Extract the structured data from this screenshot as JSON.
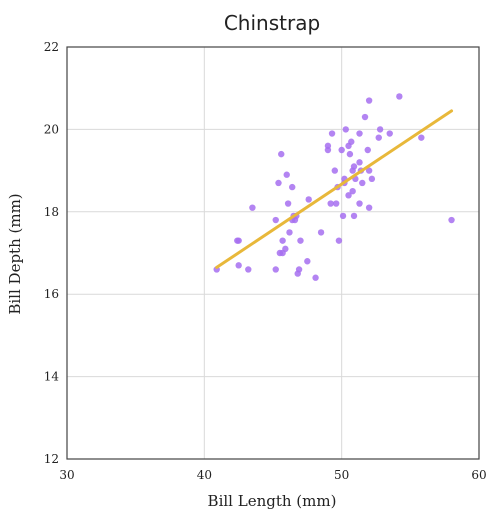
{
  "chart_data": {
    "type": "scatter",
    "title": "Chinstrap",
    "xlabel": "Bill Length (mm)",
    "ylabel": "Bill Depth (mm)",
    "xlim": [
      30,
      60
    ],
    "ylim": [
      12,
      22
    ],
    "xticks": [
      30,
      40,
      50,
      60
    ],
    "yticks": [
      12,
      14,
      16,
      18,
      20,
      22
    ],
    "grid": true,
    "colors": {
      "points": "#a66ef0",
      "trend": "#e8b83a",
      "grid": "#d9d9d9",
      "frame": "#444444"
    },
    "points": [
      [
        40.9,
        16.6
      ],
      [
        42.4,
        17.3
      ],
      [
        42.5,
        17.3
      ],
      [
        42.5,
        16.7
      ],
      [
        43.2,
        16.6
      ],
      [
        43.5,
        18.1
      ],
      [
        45.2,
        16.6
      ],
      [
        45.2,
        17.8
      ],
      [
        45.4,
        18.7
      ],
      [
        45.5,
        17.0
      ],
      [
        45.6,
        19.4
      ],
      [
        45.7,
        17.0
      ],
      [
        45.7,
        17.3
      ],
      [
        45.9,
        17.1
      ],
      [
        46.0,
        18.9
      ],
      [
        46.1,
        18.2
      ],
      [
        46.2,
        17.5
      ],
      [
        46.4,
        18.6
      ],
      [
        46.4,
        17.8
      ],
      [
        46.5,
        17.9
      ],
      [
        46.6,
        17.8
      ],
      [
        46.7,
        17.9
      ],
      [
        46.8,
        16.5
      ],
      [
        46.9,
        16.6
      ],
      [
        47.0,
        17.3
      ],
      [
        47.5,
        16.8
      ],
      [
        47.6,
        18.3
      ],
      [
        48.1,
        16.4
      ],
      [
        48.5,
        17.5
      ],
      [
        49.0,
        19.6
      ],
      [
        49.0,
        19.5
      ],
      [
        49.2,
        18.2
      ],
      [
        49.3,
        19.9
      ],
      [
        49.5,
        19.0
      ],
      [
        49.6,
        18.2
      ],
      [
        49.7,
        18.6
      ],
      [
        49.8,
        17.3
      ],
      [
        50.0,
        19.5
      ],
      [
        50.1,
        17.9
      ],
      [
        50.2,
        18.7
      ],
      [
        50.2,
        18.8
      ],
      [
        50.3,
        20.0
      ],
      [
        50.5,
        18.4
      ],
      [
        50.5,
        19.6
      ],
      [
        50.6,
        19.4
      ],
      [
        50.7,
        19.7
      ],
      [
        50.8,
        19.0
      ],
      [
        50.8,
        18.5
      ],
      [
        50.9,
        17.9
      ],
      [
        50.9,
        19.1
      ],
      [
        51.0,
        18.8
      ],
      [
        51.3,
        18.2
      ],
      [
        51.3,
        19.2
      ],
      [
        51.3,
        19.9
      ],
      [
        51.4,
        19.0
      ],
      [
        51.5,
        18.7
      ],
      [
        51.7,
        20.3
      ],
      [
        51.9,
        19.5
      ],
      [
        52.0,
        19.0
      ],
      [
        52.0,
        18.1
      ],
      [
        52.0,
        20.7
      ],
      [
        52.2,
        18.8
      ],
      [
        52.7,
        19.8
      ],
      [
        52.8,
        20.0
      ],
      [
        53.5,
        19.9
      ],
      [
        54.2,
        20.8
      ],
      [
        55.8,
        19.8
      ],
      [
        58.0,
        17.8
      ]
    ],
    "trendline": [
      [
        40.9,
        16.65
      ],
      [
        58.0,
        20.45
      ]
    ]
  }
}
